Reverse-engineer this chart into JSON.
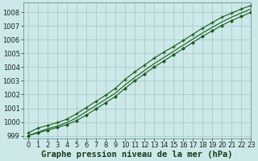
{
  "title": "Graphe pression niveau de la mer (hPa)",
  "bg_color": "#cce8e8",
  "grid_color": "#aacccc",
  "line_color": "#1a5c1a",
  "marker_color": "#1a5c1a",
  "xlim": [
    -0.5,
    23
  ],
  "ylim": [
    998.8,
    1008.7
  ],
  "yticks": [
    999,
    1000,
    1001,
    1002,
    1003,
    1004,
    1005,
    1006,
    1007,
    1008
  ],
  "xticks": [
    0,
    1,
    2,
    3,
    4,
    5,
    6,
    7,
    8,
    9,
    10,
    11,
    12,
    13,
    14,
    15,
    16,
    17,
    18,
    19,
    20,
    21,
    22,
    23
  ],
  "series_top": [
    999.2,
    999.55,
    999.75,
    999.95,
    1000.2,
    1000.6,
    1001.05,
    1001.5,
    1001.95,
    1002.45,
    1003.1,
    1003.65,
    1004.15,
    1004.65,
    1005.1,
    1005.5,
    1005.95,
    1006.4,
    1006.85,
    1007.25,
    1007.65,
    1007.95,
    1008.25,
    1008.5
  ],
  "series_mid": [
    999.0,
    999.25,
    999.5,
    999.7,
    999.95,
    1000.3,
    1000.75,
    1001.2,
    1001.65,
    1002.1,
    1002.7,
    1003.25,
    1003.75,
    1004.25,
    1004.7,
    1005.15,
    1005.6,
    1006.05,
    1006.5,
    1006.9,
    1007.3,
    1007.65,
    1007.95,
    1008.25
  ],
  "series_bot": [
    999.0,
    999.2,
    999.4,
    999.6,
    999.8,
    1000.1,
    1000.5,
    1000.95,
    1001.4,
    1001.85,
    1002.45,
    1003.0,
    1003.5,
    1004.0,
    1004.45,
    1004.9,
    1005.35,
    1005.8,
    1006.25,
    1006.65,
    1007.05,
    1007.4,
    1007.7,
    1008.0
  ],
  "title_fontsize": 7.5,
  "tick_fontsize": 6
}
